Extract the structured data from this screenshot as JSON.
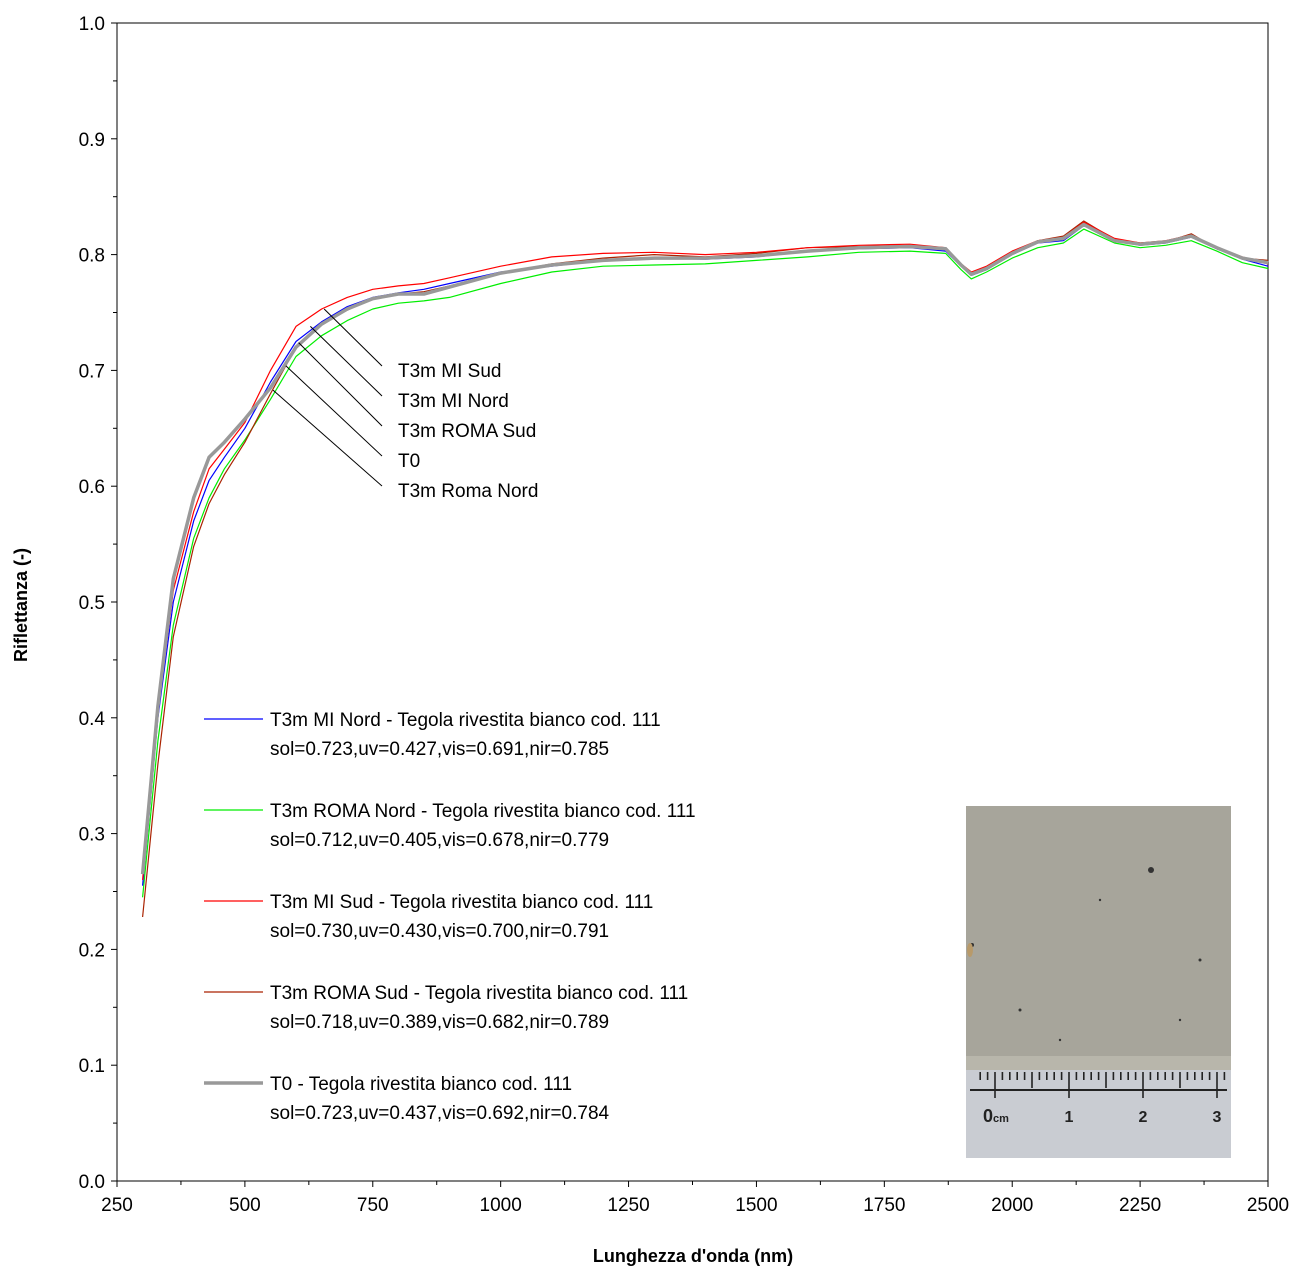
{
  "chart_data": {
    "type": "line",
    "title": "",
    "xlabel": "Lunghezza d'onda (nm)",
    "ylabel": "Riflettanza (-)",
    "xlim": [
      250,
      2500
    ],
    "ylim": [
      0.0,
      1.0
    ],
    "xticks": [
      "250",
      "500",
      "750",
      "1000",
      "1250",
      "1500",
      "1750",
      "2000",
      "2250",
      "2500"
    ],
    "yticks": [
      "0.0",
      "0.1",
      "0.2",
      "0.3",
      "0.4",
      "0.5",
      "0.6",
      "0.7",
      "0.8",
      "0.9",
      "1.0"
    ],
    "grid": false,
    "legend_position": "lower-left",
    "series": [
      {
        "name": "T3m MI Nord - Tegola rivestita bianco cod. 111",
        "stats": "sol=0.723,uv=0.427,vis=0.691,nir=0.785",
        "color": "#0000ff",
        "x": [
          300,
          330,
          360,
          400,
          430,
          460,
          500,
          550,
          600,
          650,
          700,
          750,
          800,
          850,
          900,
          1000,
          1100,
          1200,
          1300,
          1400,
          1500,
          1600,
          1700,
          1800,
          1870,
          1900,
          1920,
          1950,
          2000,
          2050,
          2100,
          2140,
          2200,
          2250,
          2300,
          2350,
          2400,
          2450,
          2500
        ],
        "y": [
          0.255,
          0.4,
          0.5,
          0.57,
          0.605,
          0.625,
          0.65,
          0.69,
          0.725,
          0.742,
          0.755,
          0.763,
          0.767,
          0.77,
          0.775,
          0.785,
          0.79,
          0.795,
          0.797,
          0.796,
          0.798,
          0.803,
          0.805,
          0.806,
          0.803,
          0.79,
          0.782,
          0.787,
          0.8,
          0.81,
          0.812,
          0.825,
          0.812,
          0.808,
          0.81,
          0.815,
          0.805,
          0.796,
          0.79
        ]
      },
      {
        "name": "T3m ROMA Nord - Tegola rivestita bianco cod. 111",
        "stats": "sol=0.712,uv=0.405,vis=0.678,nir=0.779",
        "color": "#00ee00",
        "x": [
          300,
          330,
          360,
          400,
          430,
          460,
          500,
          550,
          600,
          650,
          700,
          750,
          800,
          850,
          900,
          1000,
          1100,
          1200,
          1300,
          1400,
          1500,
          1600,
          1700,
          1800,
          1870,
          1900,
          1920,
          1950,
          2000,
          2050,
          2100,
          2140,
          2200,
          2250,
          2300,
          2350,
          2400,
          2450,
          2500
        ],
        "y": [
          0.245,
          0.38,
          0.48,
          0.555,
          0.59,
          0.615,
          0.64,
          0.675,
          0.712,
          0.73,
          0.743,
          0.753,
          0.758,
          0.76,
          0.763,
          0.775,
          0.785,
          0.79,
          0.791,
          0.792,
          0.795,
          0.798,
          0.802,
          0.803,
          0.801,
          0.787,
          0.779,
          0.785,
          0.797,
          0.806,
          0.81,
          0.822,
          0.81,
          0.806,
          0.808,
          0.812,
          0.803,
          0.793,
          0.788
        ]
      },
      {
        "name": "T3m MI Sud - Tegola rivestita bianco cod. 111",
        "stats": "sol=0.730,uv=0.430,vis=0.700,nir=0.791",
        "color": "#ff0000",
        "x": [
          300,
          330,
          360,
          400,
          430,
          460,
          500,
          550,
          600,
          650,
          700,
          750,
          800,
          850,
          900,
          1000,
          1100,
          1200,
          1300,
          1400,
          1500,
          1600,
          1700,
          1800,
          1870,
          1900,
          1920,
          1950,
          2000,
          2050,
          2100,
          2140,
          2200,
          2250,
          2300,
          2350,
          2400,
          2450,
          2500
        ],
        "y": [
          0.26,
          0.405,
          0.51,
          0.578,
          0.615,
          0.632,
          0.655,
          0.7,
          0.738,
          0.753,
          0.763,
          0.77,
          0.773,
          0.775,
          0.78,
          0.79,
          0.798,
          0.801,
          0.802,
          0.8,
          0.802,
          0.806,
          0.808,
          0.809,
          0.806,
          0.792,
          0.785,
          0.79,
          0.803,
          0.812,
          0.815,
          0.828,
          0.814,
          0.81,
          0.812,
          0.817,
          0.806,
          0.798,
          0.792
        ]
      },
      {
        "name": "T3m ROMA Sud - Tegola rivestita bianco cod. 111",
        "stats": "sol=0.718,uv=0.389,vis=0.682,nir=0.789",
        "color": "#aa2200",
        "x": [
          300,
          330,
          360,
          400,
          430,
          460,
          500,
          550,
          600,
          650,
          700,
          750,
          800,
          850,
          900,
          1000,
          1100,
          1200,
          1300,
          1400,
          1500,
          1600,
          1700,
          1800,
          1870,
          1900,
          1920,
          1950,
          2000,
          2050,
          2100,
          2140,
          2200,
          2250,
          2300,
          2350,
          2400,
          2450,
          2500
        ],
        "y": [
          0.228,
          0.36,
          0.47,
          0.548,
          0.585,
          0.61,
          0.638,
          0.68,
          0.72,
          0.74,
          0.752,
          0.762,
          0.766,
          0.768,
          0.773,
          0.784,
          0.792,
          0.797,
          0.8,
          0.798,
          0.801,
          0.806,
          0.807,
          0.808,
          0.806,
          0.792,
          0.784,
          0.789,
          0.802,
          0.812,
          0.816,
          0.829,
          0.813,
          0.81,
          0.811,
          0.818,
          0.805,
          0.797,
          0.795
        ]
      },
      {
        "name": "T0 - Tegola rivestita bianco cod. 111",
        "stats": "sol=0.723,uv=0.437,vis=0.692,nir=0.784",
        "color": "#999999",
        "x": [
          300,
          330,
          360,
          400,
          430,
          460,
          500,
          550,
          600,
          650,
          700,
          750,
          800,
          850,
          900,
          1000,
          1100,
          1200,
          1300,
          1400,
          1500,
          1600,
          1700,
          1800,
          1870,
          1900,
          1920,
          1950,
          2000,
          2050,
          2100,
          2140,
          2200,
          2250,
          2300,
          2350,
          2400,
          2450,
          2500
        ],
        "y": [
          0.265,
          0.41,
          0.52,
          0.59,
          0.625,
          0.638,
          0.658,
          0.685,
          0.72,
          0.74,
          0.753,
          0.762,
          0.766,
          0.766,
          0.772,
          0.784,
          0.791,
          0.795,
          0.797,
          0.797,
          0.799,
          0.803,
          0.806,
          0.807,
          0.805,
          0.791,
          0.783,
          0.788,
          0.801,
          0.811,
          0.814,
          0.826,
          0.812,
          0.809,
          0.811,
          0.816,
          0.806,
          0.797,
          0.793
        ]
      }
    ],
    "callouts": [
      {
        "label": "T3m MI Sud",
        "x": 655,
        "y": 0.753
      },
      {
        "label": "T3m MI Nord",
        "x": 628,
        "y": 0.738
      },
      {
        "label": "T3m ROMA Sud",
        "x": 605,
        "y": 0.724
      },
      {
        "label": "T0",
        "x": 580,
        "y": 0.704
      },
      {
        "label": "T3m Roma Nord",
        "x": 555,
        "y": 0.683
      }
    ],
    "inset_photo": {
      "ruler_labels": [
        "0",
        "cm",
        "1",
        "2",
        "3"
      ],
      "colors": {
        "tile": "#a7a59b",
        "ruler": "#c9ccd2"
      }
    }
  }
}
